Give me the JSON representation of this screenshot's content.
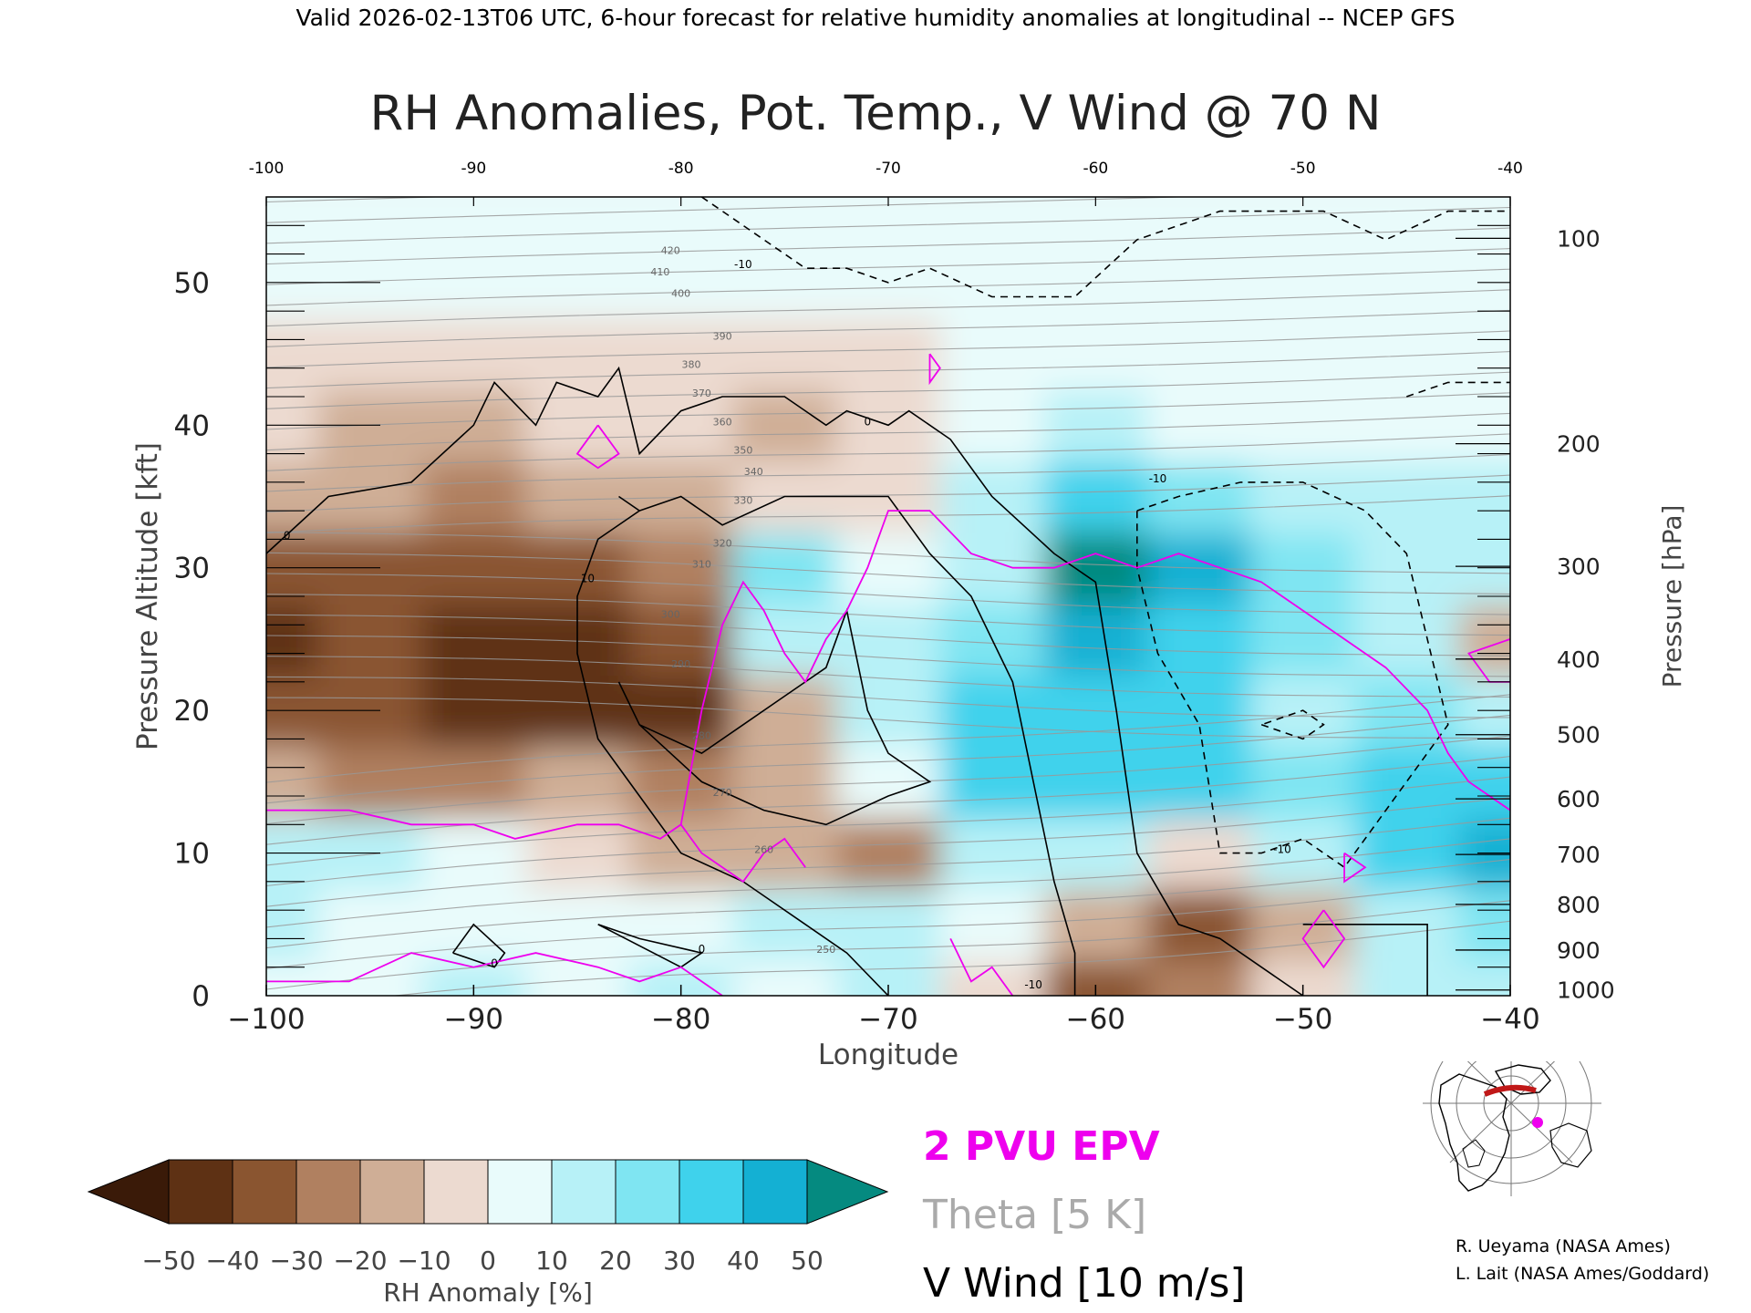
{
  "header": "Valid 2026-02-13T06 UTC, 6-hour forecast for relative humidity anomalies at longitudinal -- NCEP GFS",
  "chart_data": {
    "type": "heatmap",
    "title": "RH Anomalies, Pot. Temp., V Wind @ 70 N",
    "xlabel": "Longitude",
    "ylabel": "Pressure Altitude [kft]",
    "y2label": "Pressure [hPa]",
    "xlim": [
      -100,
      -40
    ],
    "ylim": [
      0,
      56
    ],
    "x_ticks": [
      -100,
      -90,
      -80,
      -70,
      -60,
      -50,
      -40
    ],
    "y_ticks": [
      0,
      10,
      20,
      30,
      40,
      50
    ],
    "pressure_ticks": [
      {
        "hPa": 100,
        "kft": 53.1
      },
      {
        "hPa": 200,
        "kft": 38.7
      },
      {
        "hPa": 300,
        "kft": 30.1
      },
      {
        "hPa": 400,
        "kft": 23.6
      },
      {
        "hPa": 500,
        "kft": 18.3
      },
      {
        "hPa": 600,
        "kft": 13.8
      },
      {
        "hPa": 700,
        "kft": 9.9
      },
      {
        "hPa": 800,
        "kft": 6.4
      },
      {
        "hPa": 900,
        "kft": 3.2
      },
      {
        "hPa": 1000,
        "kft": 0.4
      }
    ],
    "colorbar": {
      "label": "RH Anomaly [%]",
      "ticks": [
        -50,
        -40,
        -30,
        -20,
        -10,
        0,
        10,
        20,
        30,
        40,
        50
      ],
      "colors": [
        "#3a1a08",
        "#5e3114",
        "#8a5530",
        "#b08060",
        "#cfae96",
        "#ecdad0",
        "#e9fbfb",
        "#b7f1f7",
        "#7fe5f2",
        "#3fd2ec",
        "#14b0d3",
        "#078a9e",
        "#058a80"
      ]
    },
    "rh_anomaly_grid": {
      "x": [
        -100,
        -95,
        -90,
        -85,
        -80,
        -75,
        -70,
        -65,
        -60,
        -55,
        -50,
        -45,
        -40
      ],
      "y": [
        0,
        5,
        10,
        15,
        20,
        25,
        30,
        35,
        40,
        45,
        50,
        55
      ],
      "values": [
        [
          5,
          5,
          10,
          5,
          10,
          5,
          15,
          -10,
          -35,
          -25,
          -10,
          10,
          15
        ],
        [
          10,
          0,
          5,
          0,
          5,
          10,
          10,
          0,
          -20,
          -35,
          -20,
          15,
          25
        ],
        [
          15,
          10,
          0,
          -10,
          -15,
          -15,
          -25,
          15,
          15,
          -10,
          15,
          30,
          40
        ],
        [
          -15,
          -25,
          -25,
          -20,
          -30,
          -15,
          5,
          30,
          30,
          35,
          20,
          35,
          30
        ],
        [
          -40,
          -40,
          -45,
          -45,
          -50,
          -20,
          10,
          30,
          35,
          30,
          15,
          20,
          15
        ],
        [
          -45,
          -40,
          -45,
          -45,
          -40,
          10,
          10,
          25,
          40,
          35,
          20,
          15,
          -15
        ],
        [
          -35,
          -35,
          -35,
          -35,
          -30,
          20,
          5,
          15,
          55,
          40,
          20,
          15,
          15
        ],
        [
          -20,
          -20,
          -25,
          -20,
          -20,
          -10,
          -10,
          10,
          35,
          25,
          15,
          10,
          10
        ],
        [
          -10,
          -15,
          -15,
          -10,
          -10,
          -15,
          -5,
          0,
          10,
          5,
          0,
          0,
          0
        ],
        [
          -5,
          -5,
          -5,
          -5,
          -5,
          -5,
          -5,
          0,
          0,
          0,
          0,
          0,
          0
        ],
        [
          0,
          0,
          0,
          0,
          0,
          0,
          0,
          0,
          0,
          0,
          0,
          0,
          0
        ],
        [
          0,
          0,
          0,
          0,
          0,
          0,
          0,
          0,
          0,
          0,
          0,
          0,
          0
        ]
      ]
    },
    "theta_labels": [
      "250",
      "260",
      "270",
      "280",
      "290",
      "300",
      "310",
      "320",
      "330",
      "340",
      "350",
      "360",
      "370",
      "380",
      "390",
      "400",
      "410",
      "420"
    ],
    "vwind_labels": [
      "0",
      "10",
      "-10"
    ],
    "legend": [
      {
        "label": "2 PVU EPV",
        "color": "#ee00ee"
      },
      {
        "label": "Theta [5 K]",
        "color": "#aaaaaa"
      },
      {
        "label": "V Wind [10 m/s]",
        "color": "#000000"
      }
    ]
  },
  "credits": [
    "R. Ueyama (NASA Ames)",
    "L. Lait (NASA Ames/Goddard)"
  ],
  "colors": {
    "epv": "#ee00ee",
    "theta": "#999999",
    "wind": "#000000",
    "location_marker": "#ee00ee",
    "track": "#c01818"
  }
}
